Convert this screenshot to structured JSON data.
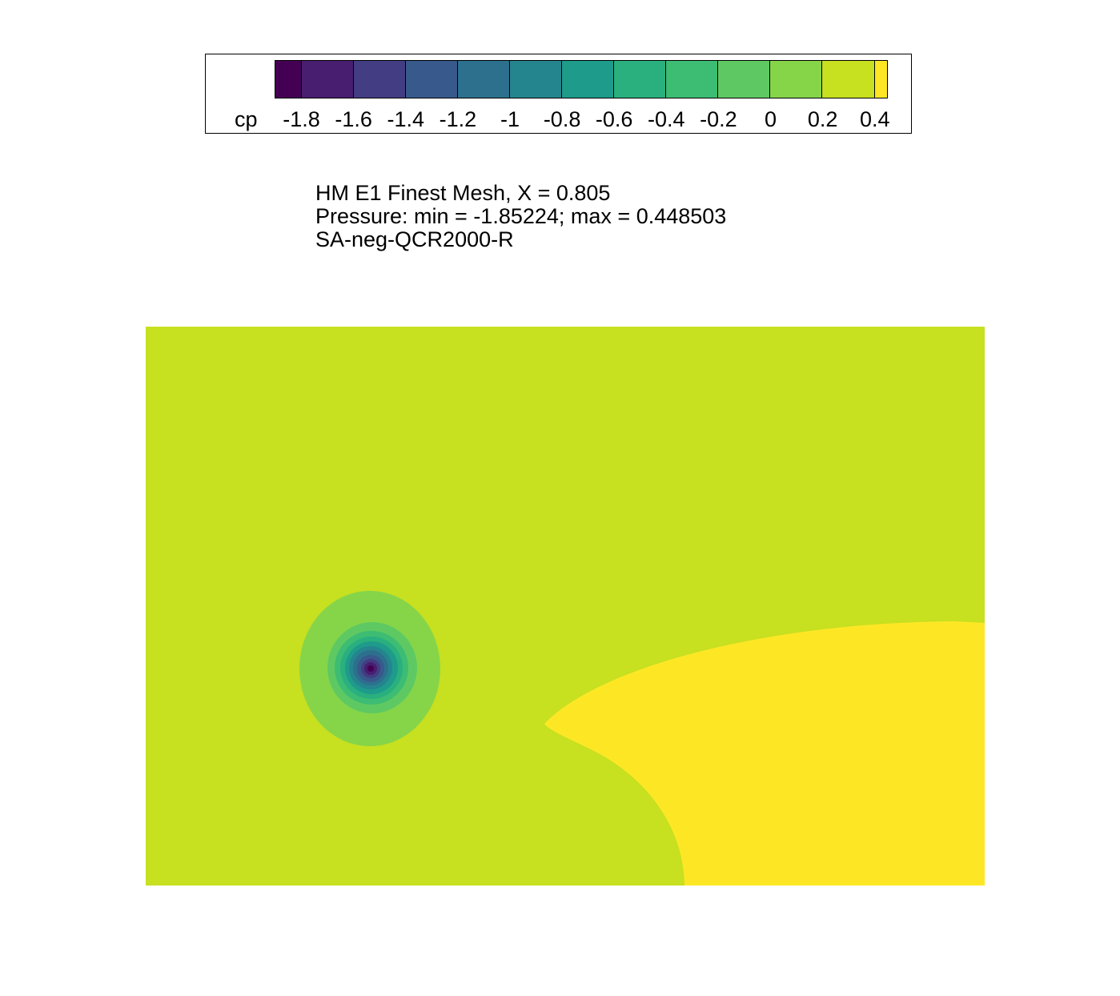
{
  "legend": {
    "title": "cp",
    "levels": [
      -1.9,
      -1.8,
      -1.6,
      -1.4,
      -1.2,
      -1.0,
      -0.8,
      -0.6,
      -0.4,
      -0.2,
      0.0,
      0.2,
      0.4,
      0.45
    ],
    "tick_labels": [
      "-1.8",
      "-1.6",
      "-1.4",
      "-1.2",
      "-1",
      "-0.8",
      "-0.6",
      "-0.4",
      "-0.2",
      "0",
      "0.2",
      "0.4"
    ],
    "colors": [
      "#440154",
      "#481e70",
      "#433d84",
      "#38598c",
      "#2d708e",
      "#25858e",
      "#1e9b8a",
      "#2ab07f",
      "#3dbc74",
      "#5ec962",
      "#86d549",
      "#c7e020",
      "#fde725"
    ]
  },
  "info": {
    "line1": "HM E1 Finest Mesh, X = 0.805",
    "line2": "Pressure:  min = -1.85224; max = 0.448503",
    "line3": "SA-neg-QCR2000-R"
  },
  "chart_data": {
    "type": "heatmap",
    "variable": "cp",
    "min": -1.85224,
    "max": 0.448503,
    "background_level_color": "#c7e020",
    "high_pressure_region_color": "#fde725",
    "vortex_core_color": "#440154"
  }
}
